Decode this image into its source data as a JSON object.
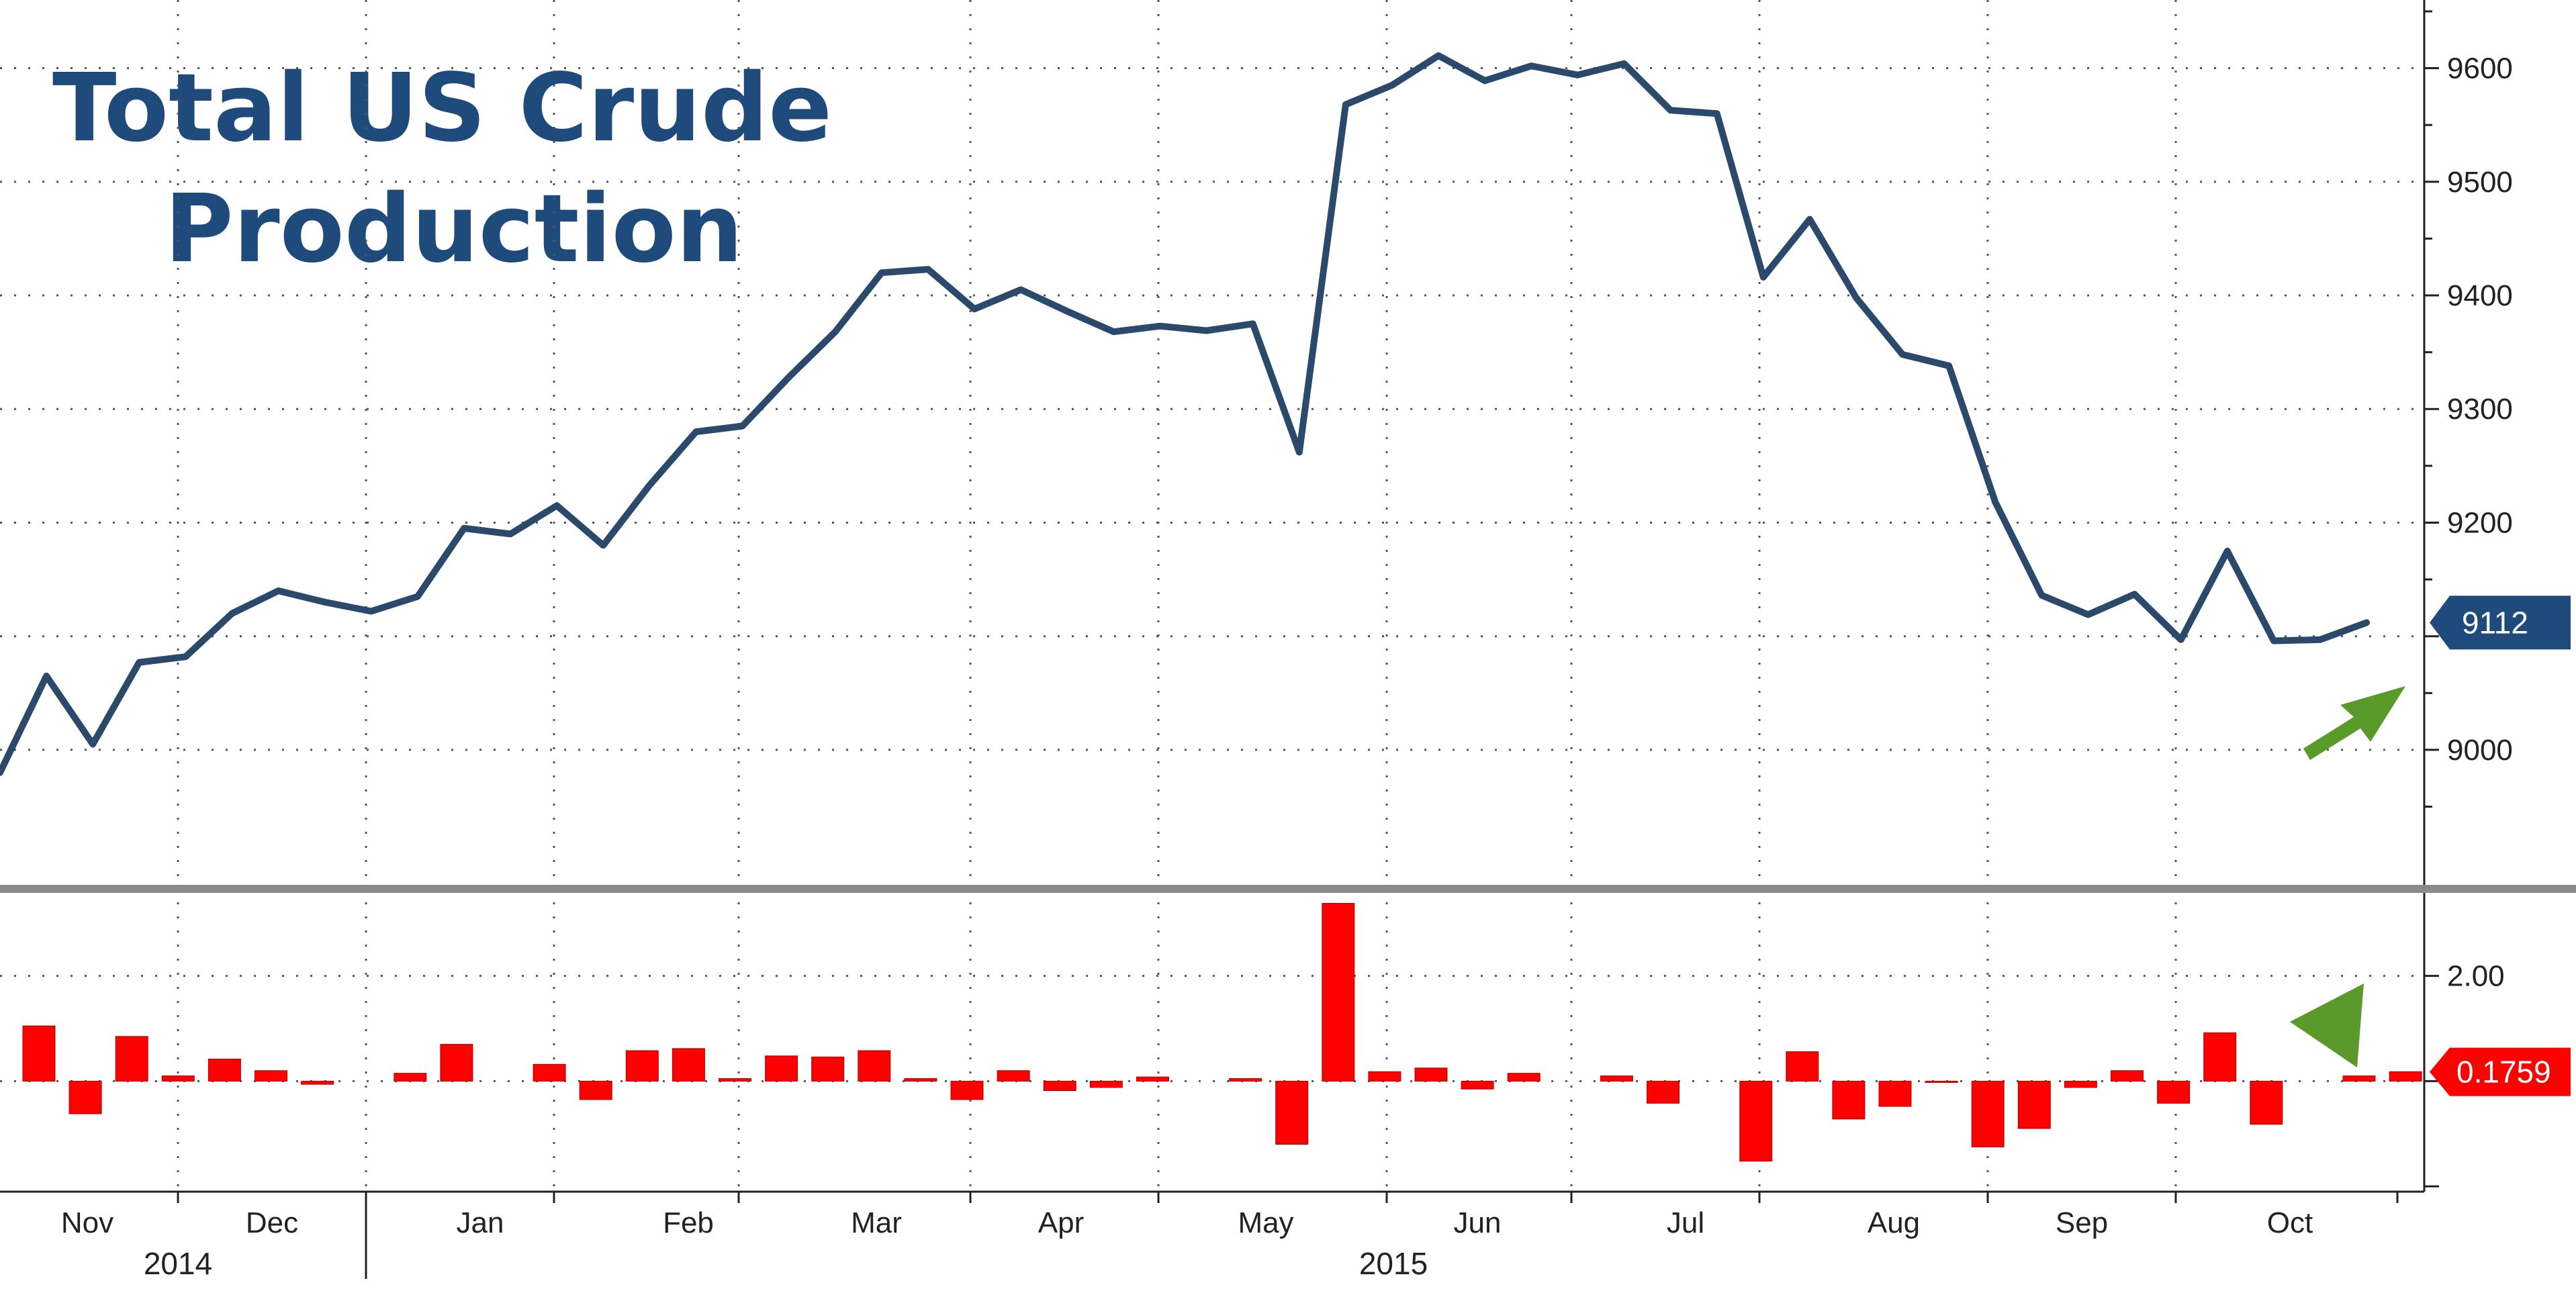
{
  "chart_data": [
    {
      "type": "line",
      "title_lines": [
        "Total US Crude",
        "Production"
      ],
      "y_ticks": [
        9000,
        9100,
        9200,
        9300,
        9400,
        9500,
        9600
      ],
      "y_tick_labels": [
        "9000",
        "",
        "9200",
        "9300",
        "9400",
        "9500",
        "9600"
      ],
      "ylim": [
        8880,
        9660
      ],
      "last_value": 9112,
      "last_value_label": "9112",
      "series": [
        {
          "values": [
            8980,
            9065,
            9005,
            9077,
            9082,
            9120,
            9140,
            9130,
            9122,
            9135,
            9195,
            9190,
            9215,
            9180,
            9233,
            9280,
            9285,
            9328,
            9368,
            9420,
            9423,
            9388,
            9405,
            9386,
            9368,
            9373,
            9369,
            9375,
            9262,
            9568,
            9585,
            9611,
            9589,
            9602,
            9594,
            9604,
            9563,
            9560,
            9416,
            9467,
            9398,
            9348,
            9338,
            9218,
            9136,
            9119,
            9137,
            9097,
            9175,
            9096,
            9097,
            9112
          ]
        }
      ],
      "colors": {
        "line": "#2b4a6b",
        "callout": "#1f4a7c"
      },
      "grid": true
    },
    {
      "type": "bar",
      "y_ticks": [
        2.0
      ],
      "y_tick_labels": [
        "2.00"
      ],
      "ylim": [
        -2.1,
        3.45
      ],
      "last_value": 0.1759,
      "last_value_label": "0.1759",
      "series": [
        {
          "values": [
            1.05,
            -0.62,
            0.85,
            0.1,
            0.42,
            0.2,
            -0.06,
            0.0,
            0.15,
            0.7,
            0.0,
            0.32,
            -0.35,
            0.58,
            0.62,
            0.05,
            0.48,
            0.46,
            0.58,
            0.05,
            -0.35,
            0.2,
            -0.18,
            -0.12,
            0.08,
            0.0,
            0.05,
            -1.2,
            3.38,
            0.18,
            0.25,
            -0.15,
            0.15,
            0.0,
            0.1,
            -0.42,
            0.0,
            -1.52,
            0.56,
            -0.72,
            -0.48,
            -0.02,
            -1.25,
            -0.9,
            -0.12,
            0.2,
            -0.42,
            0.92,
            -0.82,
            0.0,
            0.1,
            0.18
          ]
        }
      ],
      "colors": {
        "bars": "#ff0000",
        "callout": "#ff0000"
      },
      "grid": true
    }
  ],
  "x_axis": {
    "months": [
      "Nov",
      "Dec",
      "Jan",
      "Feb",
      "Mar",
      "Apr",
      "May",
      "Jun",
      "Jul",
      "Aug",
      "Sep",
      "Oct"
    ],
    "years": [
      "2014",
      "2015"
    ]
  }
}
